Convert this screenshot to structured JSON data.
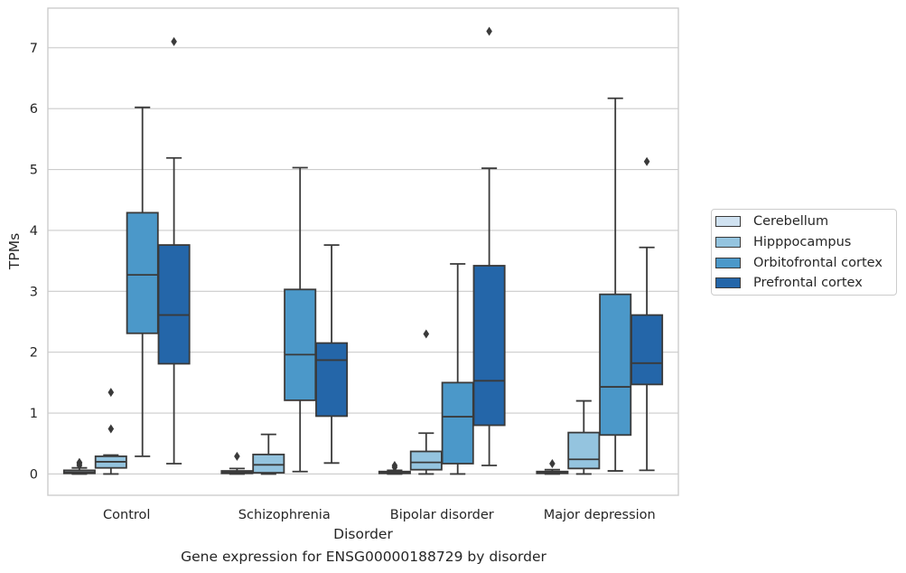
{
  "caption": "Gene expression for ENSG00000188729 by disorder",
  "chart_data": {
    "type": "box",
    "xlabel": "Disorder",
    "ylabel": "TPMs",
    "ylim": [
      -0.35,
      7.65
    ],
    "yticks": [
      0,
      1,
      2,
      3,
      4,
      5,
      6,
      7
    ],
    "grid": "horizontal",
    "legend_position": "right",
    "categories": [
      "Control",
      "Schizophrenia",
      "Bipolar disorder",
      "Major depression"
    ],
    "series": [
      {
        "name": "Cerebellum",
        "color": "#d0e2f1",
        "boxes": [
          {
            "whislo": 0.0,
            "q1": 0.01,
            "med": 0.03,
            "q3": 0.06,
            "whishi": 0.1,
            "fliers": [
              0.14,
              0.17,
              0.19
            ]
          },
          {
            "whislo": 0.0,
            "q1": 0.01,
            "med": 0.03,
            "q3": 0.05,
            "whishi": 0.09,
            "fliers": [
              0.29
            ]
          },
          {
            "whislo": 0.0,
            "q1": 0.01,
            "med": 0.02,
            "q3": 0.04,
            "whishi": 0.06,
            "fliers": [
              0.11,
              0.14
            ]
          },
          {
            "whislo": 0.0,
            "q1": 0.01,
            "med": 0.02,
            "q3": 0.04,
            "whishi": 0.07,
            "fliers": [
              0.17
            ]
          }
        ]
      },
      {
        "name": "Hipppocampus",
        "color": "#94c4df",
        "boxes": [
          {
            "whislo": 0.0,
            "q1": 0.1,
            "med": 0.2,
            "q3": 0.29,
            "whishi": 0.31,
            "fliers": [
              0.74,
              1.34
            ]
          },
          {
            "whislo": 0.0,
            "q1": 0.02,
            "med": 0.15,
            "q3": 0.32,
            "whishi": 0.65,
            "fliers": []
          },
          {
            "whislo": 0.0,
            "q1": 0.07,
            "med": 0.19,
            "q3": 0.37,
            "whishi": 0.67,
            "fliers": [
              2.3
            ]
          },
          {
            "whislo": 0.0,
            "q1": 0.09,
            "med": 0.24,
            "q3": 0.68,
            "whishi": 1.2,
            "fliers": []
          }
        ]
      },
      {
        "name": "Orbitofrontal cortex",
        "color": "#4b98c9",
        "boxes": [
          {
            "whislo": 0.29,
            "q1": 2.31,
            "med": 3.27,
            "q3": 4.29,
            "whishi": 6.02,
            "fliers": []
          },
          {
            "whislo": 0.04,
            "q1": 1.21,
            "med": 1.96,
            "q3": 3.03,
            "whishi": 5.03,
            "fliers": []
          },
          {
            "whislo": 0.0,
            "q1": 0.17,
            "med": 0.94,
            "q3": 1.5,
            "whishi": 3.45,
            "fliers": []
          },
          {
            "whislo": 0.05,
            "q1": 0.64,
            "med": 1.43,
            "q3": 2.95,
            "whishi": 6.17,
            "fliers": []
          }
        ]
      },
      {
        "name": "Prefrontal cortex",
        "color": "#2466a9",
        "boxes": [
          {
            "whislo": 0.17,
            "q1": 1.81,
            "med": 2.61,
            "q3": 3.76,
            "whishi": 5.19,
            "fliers": [
              7.1
            ]
          },
          {
            "whislo": 0.18,
            "q1": 0.95,
            "med": 1.87,
            "q3": 2.15,
            "whishi": 3.76,
            "fliers": []
          },
          {
            "whislo": 0.14,
            "q1": 0.8,
            "med": 1.53,
            "q3": 3.42,
            "whishi": 5.02,
            "fliers": [
              7.27
            ]
          },
          {
            "whislo": 0.06,
            "q1": 1.47,
            "med": 1.82,
            "q3": 2.61,
            "whishi": 3.72,
            "fliers": [
              5.13
            ]
          }
        ]
      }
    ]
  }
}
